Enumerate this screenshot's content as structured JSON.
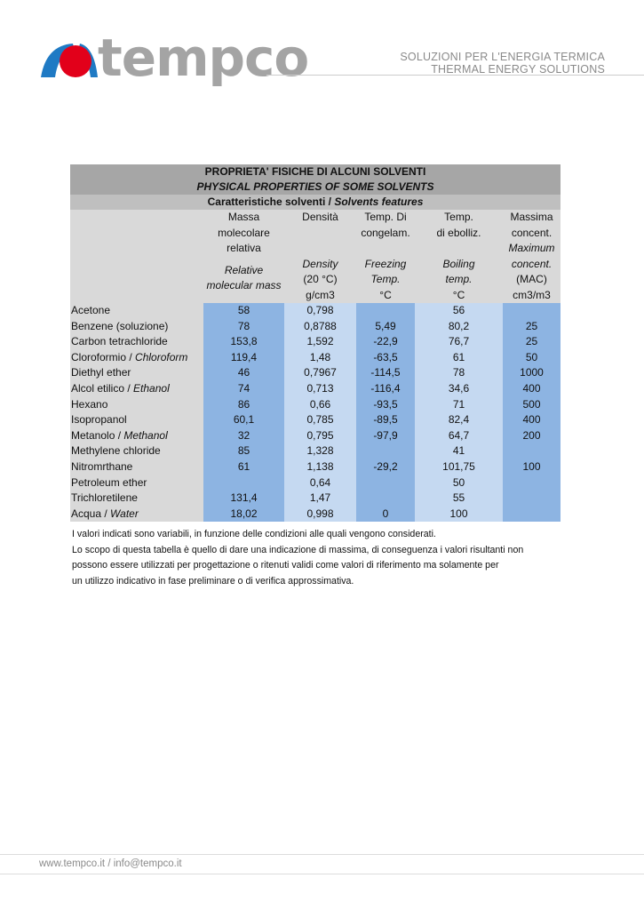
{
  "brand": {
    "name": "tempco",
    "tagline_it": "SOLUZIONI PER L'ENERGIA TERMICA",
    "tagline_en": "THERMAL ENERGY SOLUTIONS",
    "colors": {
      "red": "#e2001a",
      "blue": "#1f7ac4",
      "gray": "#a4a4a4"
    }
  },
  "table": {
    "title_it": "PROPRIETA' FISICHE DI ALCUNI SOLVENTI",
    "title_en": "PHYSICAL PROPERTIES OF SOME SOLVENTS",
    "subtitle_it": "Caratteristiche solventi / ",
    "subtitle_en": "Solvents features",
    "headers": [
      {
        "it": [
          "Massa",
          "molecolare",
          "relativa"
        ],
        "en": [
          "Relative",
          "molecular mass"
        ],
        "unit": ""
      },
      {
        "it": [
          "Densità"
        ],
        "en": [
          "Density"
        ],
        "unit": [
          "(20 °C)",
          "g/cm3"
        ]
      },
      {
        "it": [
          "Temp. Di",
          "congelam."
        ],
        "en": [
          "Freezing",
          "Temp."
        ],
        "unit": [
          "°C"
        ]
      },
      {
        "it": [
          "Temp.",
          "di ebolliz."
        ],
        "en": [
          "Boiling",
          "temp."
        ],
        "unit": [
          "°C"
        ]
      },
      {
        "it": [
          "Massima",
          "concent."
        ],
        "en": [
          "Maximum",
          "concent."
        ],
        "unit": [
          "(MAC)",
          "cm3/m3"
        ]
      }
    ],
    "rows": [
      {
        "name": "Acetone",
        "name_en": "",
        "values": [
          "58",
          "0,798",
          "",
          "56",
          ""
        ]
      },
      {
        "name": "Benzene (soluzione)",
        "name_en": "",
        "values": [
          "78",
          "0,8788",
          "5,49",
          "80,2",
          "25"
        ]
      },
      {
        "name": "Carbon tetrachloride",
        "name_en": "",
        "values": [
          "153,8",
          "1,592",
          "-22,9",
          "76,7",
          "25"
        ]
      },
      {
        "name": "Cloroformio / ",
        "name_en": "Chloroform",
        "values": [
          "119,4",
          "1,48",
          "-63,5",
          "61",
          "50"
        ]
      },
      {
        "name": "Diethyl ether",
        "name_en": "",
        "values": [
          "46",
          "0,7967",
          "-114,5",
          "78",
          "1000"
        ]
      },
      {
        "name": "Alcol etilico / ",
        "name_en": "Ethanol",
        "values": [
          "74",
          "0,713",
          "-116,4",
          "34,6",
          "400"
        ]
      },
      {
        "name": "Hexano",
        "name_en": "",
        "values": [
          "86",
          "0,66",
          "-93,5",
          "71",
          "500"
        ]
      },
      {
        "name": "Isopropanol",
        "name_en": "",
        "values": [
          "60,1",
          "0,785",
          "-89,5",
          "82,4",
          "400"
        ]
      },
      {
        "name": "Metanolo / ",
        "name_en": "Methanol",
        "values": [
          "32",
          "0,795",
          "-97,9",
          "64,7",
          "200"
        ]
      },
      {
        "name": "Methylene chloride",
        "name_en": "",
        "values": [
          "85",
          "1,328",
          "",
          "41",
          ""
        ]
      },
      {
        "name": "Nitromrthane",
        "name_en": "",
        "values": [
          "61",
          "1,138",
          "-29,2",
          "101,75",
          "100"
        ]
      },
      {
        "name": "Petroleum ether",
        "name_en": "",
        "values": [
          "",
          "0,64",
          "",
          "50",
          ""
        ]
      },
      {
        "name": "Trichloretilene",
        "name_en": "",
        "values": [
          "131,4",
          "1,47",
          "",
          "55",
          ""
        ]
      },
      {
        "name": "Acqua / ",
        "name_en": "Water",
        "values": [
          "18,02",
          "0,998",
          "0",
          "100",
          ""
        ]
      }
    ]
  },
  "notes": [
    "I valori indicati sono variabili, in funzione delle condizioni alle quali vengono considerati.",
    "Lo scopo di questa tabella è quello di dare una indicazione di massima, di conseguenza i valori risultanti non",
    "possono essere utilizzati per progettazione o ritenuti validi come valori di riferimento  ma solamente per",
    "un utilizzo indicativo in fase preliminare o di verifica approssimativa."
  ],
  "footer": {
    "contact": "www.tempco.it / info@tempco.it"
  }
}
